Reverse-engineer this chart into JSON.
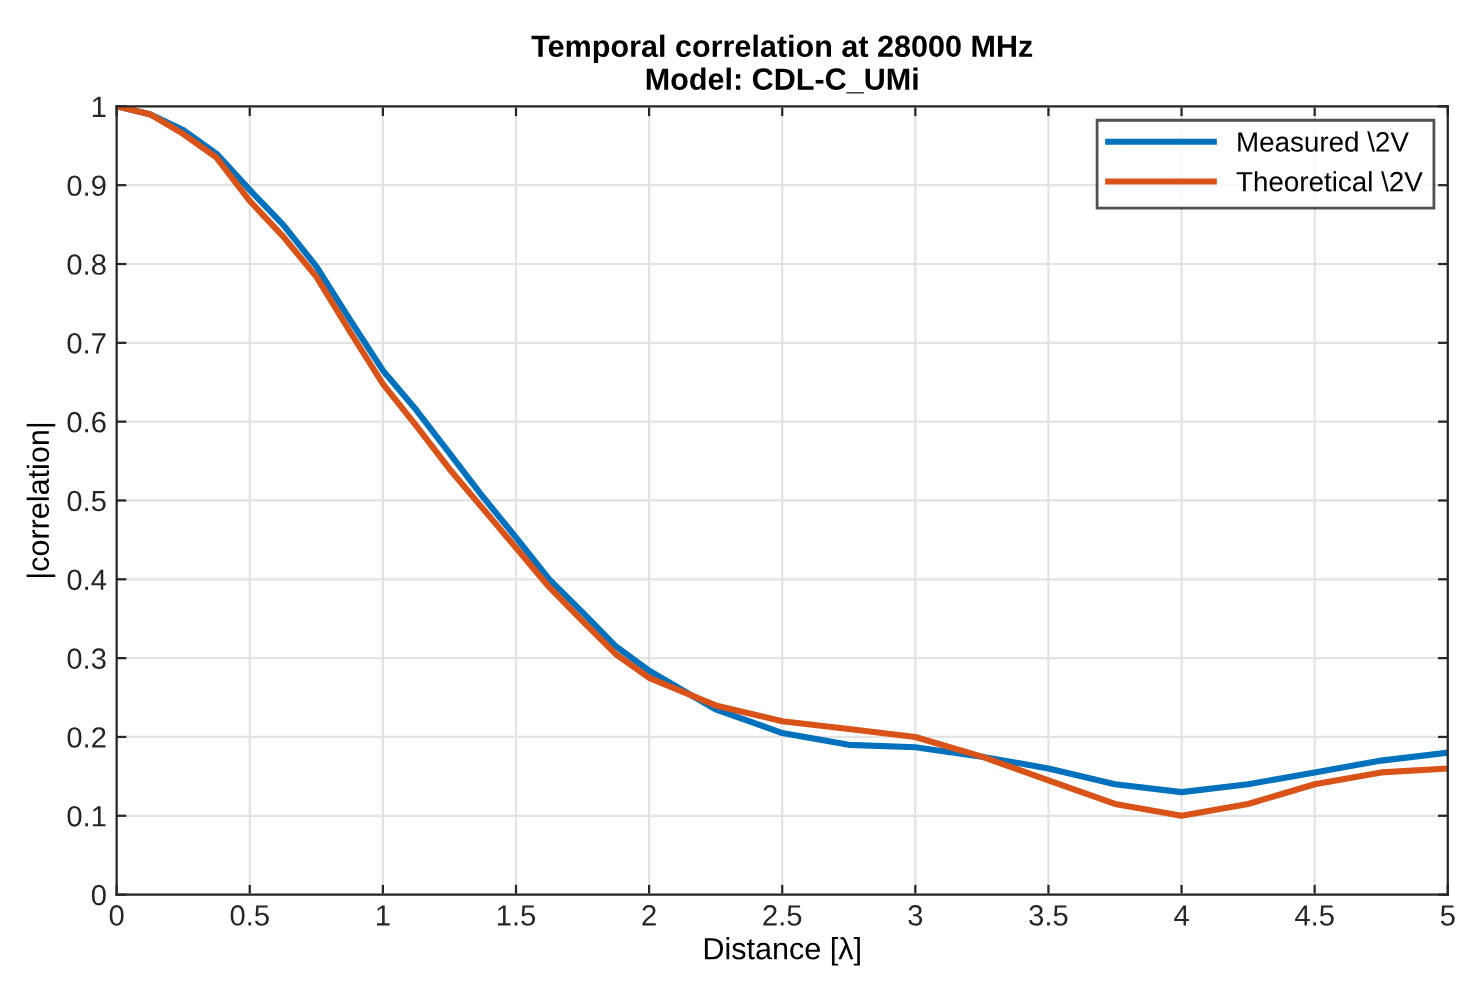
{
  "chart_data": {
    "type": "line",
    "title": "Temporal correlation at 28000 MHz\nModel: CDL-C_UMi",
    "xlabel": "Distance [λ]",
    "ylabel": "|correlation|",
    "xlim": [
      0,
      5
    ],
    "ylim": [
      0,
      1
    ],
    "xticks": [
      0,
      0.5,
      1,
      1.5,
      2,
      2.5,
      3,
      3.5,
      4,
      4.5,
      5
    ],
    "yticks": [
      0,
      0.1,
      0.2,
      0.3,
      0.4,
      0.5,
      0.6,
      0.7,
      0.8,
      0.9,
      1
    ],
    "grid": true,
    "legend": "top right",
    "line_style": "solid",
    "marker": "none",
    "x": [
      0,
      0.125,
      0.25,
      0.375,
      0.5,
      0.625,
      0.75,
      0.875,
      1,
      1.125,
      1.25,
      1.375,
      1.5,
      1.625,
      1.75,
      1.875,
      2,
      2.25,
      2.5,
      2.75,
      3,
      3.25,
      3.5,
      3.75,
      4,
      4.25,
      4.5,
      4.75,
      5
    ],
    "series": [
      {
        "name": "Measured \\2V",
        "color": "#0072bd",
        "values": [
          1,
          0.99,
          0.97,
          0.94,
          0.894,
          0.85,
          0.797,
          0.73,
          0.665,
          0.615,
          0.56,
          0.505,
          0.453,
          0.4,
          0.358,
          0.315,
          0.284,
          0.235,
          0.205,
          0.19,
          0.187,
          0.175,
          0.16,
          0.14,
          0.13,
          0.14,
          0.155,
          0.17,
          0.18
        ]
      },
      {
        "name": "Theoretical \\2V",
        "color": "#d95319",
        "values": [
          1,
          0.99,
          0.965,
          0.935,
          0.88,
          0.835,
          0.784,
          0.715,
          0.648,
          0.595,
          0.54,
          0.49,
          0.44,
          0.39,
          0.347,
          0.305,
          0.275,
          0.24,
          0.22,
          0.21,
          0.2,
          0.175,
          0.145,
          0.115,
          0.1,
          0.115,
          0.14,
          0.155,
          0.16
        ]
      }
    ]
  }
}
